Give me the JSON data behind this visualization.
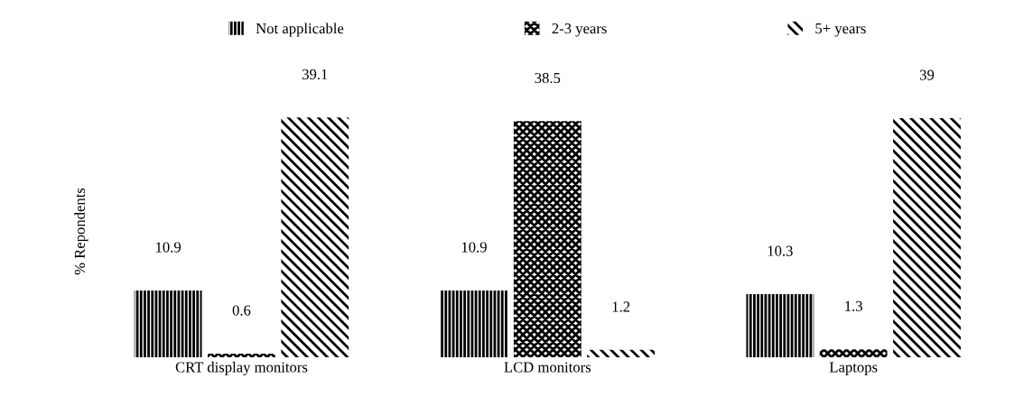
{
  "chart_data": {
    "type": "bar",
    "ylabel": "% Repondents",
    "categories": [
      "CRT display monitors",
      "LCD monitors",
      "Laptops"
    ],
    "series": [
      {
        "name": "Not applicable",
        "color": "#000000",
        "values": [
          10.9,
          10.9,
          10.3
        ]
      },
      {
        "name": "2-3 years",
        "color": "#000000",
        "values": [
          0.6,
          38.5,
          1.3
        ]
      },
      {
        "name": "5+ years",
        "color": "#000000",
        "values": [
          39.1,
          1.2,
          39
        ]
      }
    ],
    "data_labels": true,
    "legend": "top",
    "grid": false
  }
}
